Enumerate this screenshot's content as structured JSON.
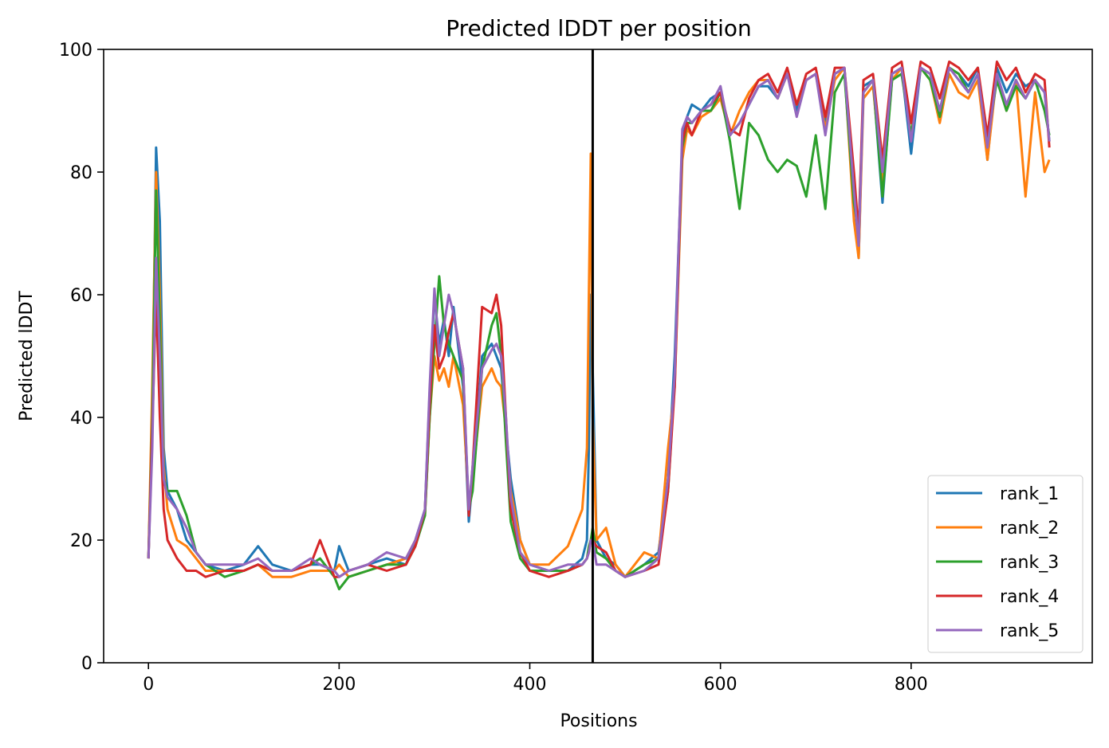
{
  "chart_data": {
    "type": "line",
    "title": "Predicted lDDT per position",
    "xlabel": "Positions",
    "ylabel": "Predicted lDDT",
    "xlim": [
      -47,
      990
    ],
    "ylim": [
      0,
      100
    ],
    "xticks": [
      0,
      200,
      400,
      600,
      800
    ],
    "yticks": [
      0,
      20,
      40,
      60,
      80,
      100
    ],
    "legend_position": "lower-right",
    "vline_x": 466,
    "series": [
      {
        "name": "rank_1",
        "color": "#1f77b4",
        "x": [
          0,
          4,
          8,
          12,
          16,
          20,
          30,
          40,
          50,
          60,
          80,
          100,
          115,
          130,
          150,
          170,
          180,
          195,
          200,
          210,
          230,
          250,
          270,
          280,
          290,
          295,
          300,
          305,
          310,
          315,
          320,
          330,
          336,
          340,
          350,
          360,
          365,
          370,
          375,
          380,
          390,
          400,
          420,
          440,
          455,
          460,
          462,
          464,
          466,
          470,
          480,
          490,
          500,
          520,
          535,
          545,
          552,
          560,
          565,
          570,
          580,
          590,
          600,
          610,
          620,
          630,
          640,
          650,
          660,
          670,
          680,
          690,
          700,
          710,
          720,
          730,
          740,
          745,
          750,
          760,
          770,
          780,
          790,
          800,
          810,
          820,
          830,
          840,
          850,
          860,
          870,
          880,
          890,
          900,
          910,
          920,
          930,
          940,
          945
        ],
        "y": [
          17,
          40,
          84,
          72,
          35,
          28,
          25,
          20,
          18,
          16,
          15,
          16,
          19,
          16,
          15,
          16,
          16,
          15,
          19,
          15,
          16,
          17,
          16,
          20,
          25,
          44,
          60,
          52,
          56,
          50,
          58,
          45,
          23,
          30,
          50,
          52,
          50,
          48,
          38,
          30,
          20,
          16,
          15,
          15,
          17,
          20,
          35,
          60,
          48,
          20,
          17,
          16,
          14,
          16,
          18,
          30,
          50,
          85,
          89,
          91,
          90,
          92,
          93,
          86,
          88,
          91,
          94,
          94,
          92,
          96,
          90,
          95,
          96,
          88,
          96,
          97,
          78,
          66,
          94,
          95,
          75,
          96,
          97,
          83,
          97,
          96,
          90,
          97,
          96,
          94,
          97,
          82,
          97,
          93,
          96,
          94,
          95,
          93,
          85
        ]
      },
      {
        "name": "rank_2",
        "color": "#ff7f0e",
        "x": [
          0,
          4,
          8,
          12,
          16,
          20,
          30,
          40,
          50,
          60,
          80,
          100,
          115,
          130,
          150,
          170,
          180,
          195,
          200,
          210,
          230,
          250,
          270,
          280,
          290,
          295,
          300,
          305,
          310,
          315,
          320,
          330,
          336,
          340,
          350,
          360,
          365,
          370,
          375,
          380,
          390,
          400,
          420,
          440,
          455,
          460,
          462,
          464,
          466,
          470,
          480,
          490,
          500,
          520,
          535,
          545,
          552,
          560,
          565,
          570,
          580,
          590,
          600,
          610,
          620,
          630,
          640,
          650,
          660,
          670,
          680,
          690,
          700,
          710,
          720,
          730,
          740,
          745,
          750,
          760,
          770,
          780,
          790,
          800,
          810,
          820,
          830,
          840,
          850,
          860,
          870,
          880,
          890,
          900,
          910,
          920,
          930,
          940,
          945
        ],
        "y": [
          17,
          45,
          80,
          60,
          32,
          25,
          20,
          19,
          17,
          15,
          15,
          15,
          16,
          14,
          14,
          15,
          15,
          15,
          16,
          14,
          15,
          16,
          17,
          20,
          24,
          40,
          50,
          46,
          48,
          45,
          50,
          42,
          26,
          30,
          45,
          48,
          46,
          45,
          38,
          28,
          20,
          16,
          16,
          19,
          25,
          35,
          60,
          83,
          40,
          20,
          22,
          16,
          14,
          18,
          17,
          35,
          45,
          82,
          87,
          86,
          89,
          90,
          92,
          86,
          90,
          93,
          95,
          95,
          92,
          96,
          91,
          95,
          96,
          87,
          95,
          97,
          72,
          66,
          92,
          94,
          78,
          95,
          97,
          86,
          97,
          95,
          88,
          96,
          93,
          92,
          95,
          82,
          96,
          90,
          95,
          76,
          93,
          80,
          82
        ]
      },
      {
        "name": "rank_3",
        "color": "#2ca02c",
        "x": [
          0,
          4,
          8,
          12,
          16,
          20,
          30,
          40,
          50,
          60,
          80,
          100,
          115,
          130,
          150,
          170,
          180,
          195,
          200,
          210,
          230,
          250,
          270,
          280,
          290,
          295,
          300,
          305,
          310,
          315,
          320,
          330,
          336,
          340,
          350,
          360,
          365,
          370,
          375,
          380,
          390,
          400,
          420,
          440,
          455,
          460,
          462,
          464,
          466,
          470,
          480,
          490,
          500,
          520,
          535,
          545,
          552,
          560,
          565,
          570,
          580,
          590,
          600,
          610,
          620,
          630,
          640,
          650,
          660,
          670,
          680,
          690,
          700,
          710,
          720,
          730,
          740,
          745,
          750,
          760,
          770,
          780,
          790,
          800,
          810,
          820,
          830,
          840,
          850,
          860,
          870,
          880,
          890,
          900,
          910,
          920,
          930,
          940,
          945
        ],
        "y": [
          17,
          40,
          77,
          55,
          30,
          28,
          28,
          24,
          18,
          16,
          14,
          15,
          16,
          15,
          15,
          16,
          17,
          14,
          12,
          14,
          15,
          16,
          16,
          19,
          24,
          40,
          52,
          63,
          55,
          52,
          50,
          46,
          25,
          28,
          48,
          55,
          57,
          50,
          36,
          23,
          17,
          15,
          15,
          15,
          16,
          17,
          19,
          20,
          22,
          18,
          17,
          15,
          14,
          16,
          17,
          28,
          46,
          84,
          88,
          88,
          90,
          90,
          93,
          85,
          74,
          88,
          86,
          82,
          80,
          82,
          81,
          76,
          86,
          74,
          93,
          96,
          75,
          70,
          93,
          95,
          76,
          95,
          96,
          86,
          97,
          95,
          89,
          97,
          96,
          93,
          96,
          85,
          95,
          90,
          94,
          92,
          95,
          90,
          86
        ]
      },
      {
        "name": "rank_4",
        "color": "#d62728",
        "x": [
          0,
          4,
          8,
          12,
          16,
          20,
          30,
          40,
          50,
          60,
          80,
          100,
          115,
          130,
          150,
          170,
          180,
          195,
          200,
          210,
          230,
          250,
          270,
          280,
          290,
          295,
          300,
          305,
          310,
          315,
          320,
          330,
          336,
          340,
          350,
          360,
          365,
          370,
          375,
          380,
          390,
          400,
          420,
          440,
          455,
          460,
          462,
          464,
          466,
          470,
          480,
          490,
          500,
          520,
          535,
          545,
          552,
          560,
          565,
          570,
          580,
          590,
          600,
          610,
          620,
          630,
          640,
          650,
          660,
          670,
          680,
          690,
          700,
          710,
          720,
          730,
          740,
          745,
          750,
          760,
          770,
          780,
          790,
          800,
          810,
          820,
          830,
          840,
          850,
          860,
          870,
          880,
          890,
          900,
          910,
          920,
          930,
          940,
          945
        ],
        "y": [
          17,
          38,
          60,
          40,
          25,
          20,
          17,
          15,
          15,
          14,
          15,
          15,
          16,
          15,
          15,
          16,
          20,
          14,
          14,
          15,
          16,
          15,
          16,
          19,
          25,
          42,
          55,
          48,
          50,
          54,
          57,
          48,
          24,
          32,
          58,
          57,
          60,
          55,
          40,
          25,
          18,
          15,
          14,
          15,
          16,
          17,
          18,
          20,
          20,
          19,
          18,
          15,
          14,
          15,
          16,
          28,
          45,
          85,
          88,
          86,
          90,
          91,
          93,
          87,
          86,
          92,
          95,
          96,
          93,
          97,
          91,
          96,
          97,
          89,
          97,
          97,
          80,
          70,
          95,
          96,
          82,
          97,
          98,
          88,
          98,
          97,
          92,
          98,
          97,
          95,
          97,
          86,
          98,
          95,
          97,
          93,
          96,
          95,
          84
        ]
      },
      {
        "name": "rank_5",
        "color": "#9467bd",
        "x": [
          0,
          4,
          8,
          12,
          16,
          20,
          30,
          40,
          50,
          60,
          80,
          100,
          115,
          130,
          150,
          170,
          180,
          195,
          200,
          210,
          230,
          250,
          270,
          280,
          290,
          295,
          300,
          305,
          310,
          315,
          320,
          330,
          336,
          340,
          350,
          360,
          365,
          370,
          375,
          380,
          390,
          400,
          420,
          440,
          455,
          460,
          462,
          464,
          466,
          470,
          480,
          490,
          500,
          520,
          535,
          545,
          552,
          560,
          565,
          570,
          580,
          590,
          600,
          610,
          620,
          630,
          640,
          650,
          660,
          670,
          680,
          690,
          700,
          710,
          720,
          730,
          740,
          745,
          750,
          760,
          770,
          780,
          790,
          800,
          810,
          820,
          830,
          840,
          850,
          860,
          870,
          880,
          890,
          900,
          910,
          920,
          930,
          940,
          945
        ],
        "y": [
          17,
          35,
          66,
          50,
          30,
          27,
          25,
          22,
          18,
          16,
          16,
          16,
          17,
          15,
          15,
          17,
          16,
          15,
          14,
          15,
          16,
          18,
          17,
          20,
          25,
          45,
          61,
          50,
          55,
          60,
          57,
          48,
          25,
          32,
          48,
          51,
          52,
          50,
          40,
          27,
          18,
          16,
          15,
          16,
          16,
          17,
          18,
          20,
          20,
          16,
          16,
          15,
          14,
          15,
          17,
          30,
          47,
          87,
          89,
          88,
          90,
          91,
          94,
          86,
          88,
          91,
          94,
          95,
          92,
          96,
          89,
          95,
          96,
          86,
          96,
          97,
          77,
          68,
          93,
          95,
          80,
          96,
          97,
          85,
          97,
          96,
          90,
          97,
          95,
          93,
          96,
          84,
          96,
          91,
          95,
          92,
          95,
          93,
          85
        ]
      }
    ]
  }
}
